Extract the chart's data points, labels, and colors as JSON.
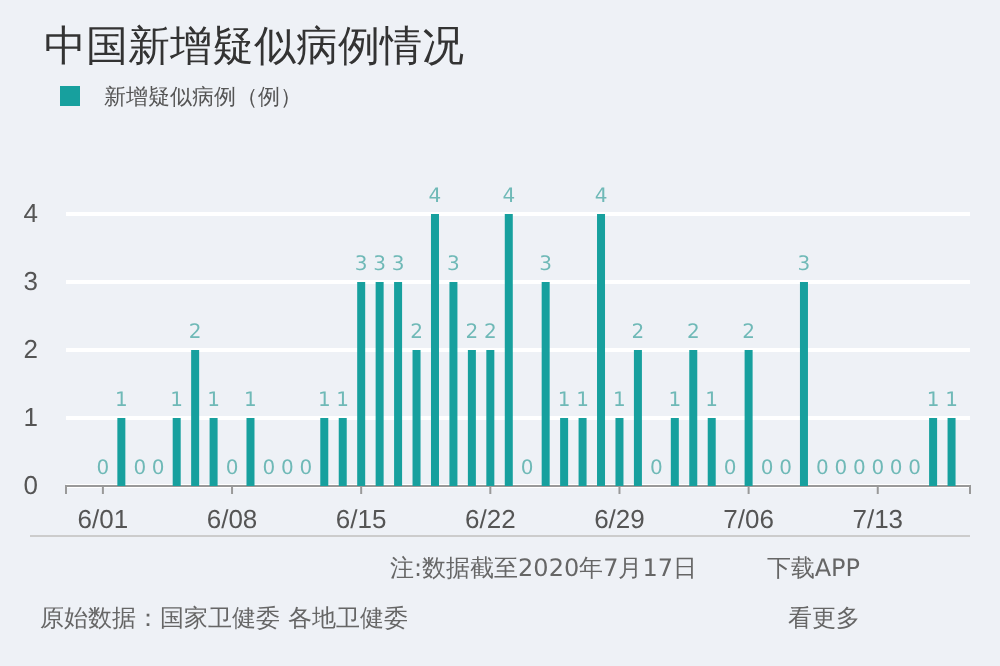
{
  "chart_data": {
    "type": "bar",
    "title": "中国新增疑似病例情况",
    "x": [
      "--06-01",
      "--06-02",
      "--06-03",
      "--06-04",
      "--06-05",
      "--06-06",
      "--06-07",
      "--06-08",
      "--06-09",
      "--06-10",
      "--06-11",
      "--06-12",
      "--06-13",
      "--06-14",
      "--06-15",
      "--06-16",
      "--06-17",
      "--06-18",
      "--06-19",
      "--06-20",
      "--06-21",
      "--06-22",
      "--06-23",
      "--06-24",
      "--06-25",
      "--06-26",
      "--06-27",
      "--06-28",
      "--06-29",
      "--06-30",
      "--07-01",
      "--07-02",
      "--07-03",
      "--07-04",
      "--07-05",
      "--07-06",
      "--07-07",
      "--07-08",
      "--07-09",
      "--07-10",
      "--07-11",
      "--07-12",
      "--07-13",
      "--07-14",
      "--07-15",
      "--07-16",
      "--07-17"
    ],
    "series": [
      {
        "name": "新增疑似病例（例）",
        "color": "#17a09e",
        "values": [
          0,
          1,
          0,
          0,
          1,
          2,
          1,
          0,
          1,
          0,
          0,
          0,
          1,
          1,
          3,
          3,
          3,
          2,
          4,
          3,
          2,
          2,
          4,
          0,
          3,
          1,
          1,
          4,
          1,
          2,
          0,
          1,
          2,
          1,
          0,
          2,
          0,
          0,
          3,
          0,
          0,
          0,
          0,
          0,
          0,
          1,
          1
        ]
      }
    ],
    "xlim": [
      "--05-30",
      "--07-18"
    ],
    "xticks": [
      {
        "value": "--06-01",
        "label": "6/01"
      },
      {
        "value": "--06-08",
        "label": "6/08"
      },
      {
        "value": "--06-15",
        "label": "6/15"
      },
      {
        "value": "--06-22",
        "label": "6/22"
      },
      {
        "value": "--06-29",
        "label": "6/29"
      },
      {
        "value": "--07-06",
        "label": "7/06"
      },
      {
        "value": "--07-13",
        "label": "7/13"
      }
    ],
    "ylim": [
      0,
      4
    ],
    "yticks": [
      0,
      1,
      2,
      3,
      4
    ],
    "grid": "y",
    "legend": "top left",
    "data_labels": true,
    "annotations": [
      "注:数据截至2020年7月17日",
      "下载APP",
      "原始数据：国家卫健委 各地卫健委",
      "看更多"
    ]
  }
}
